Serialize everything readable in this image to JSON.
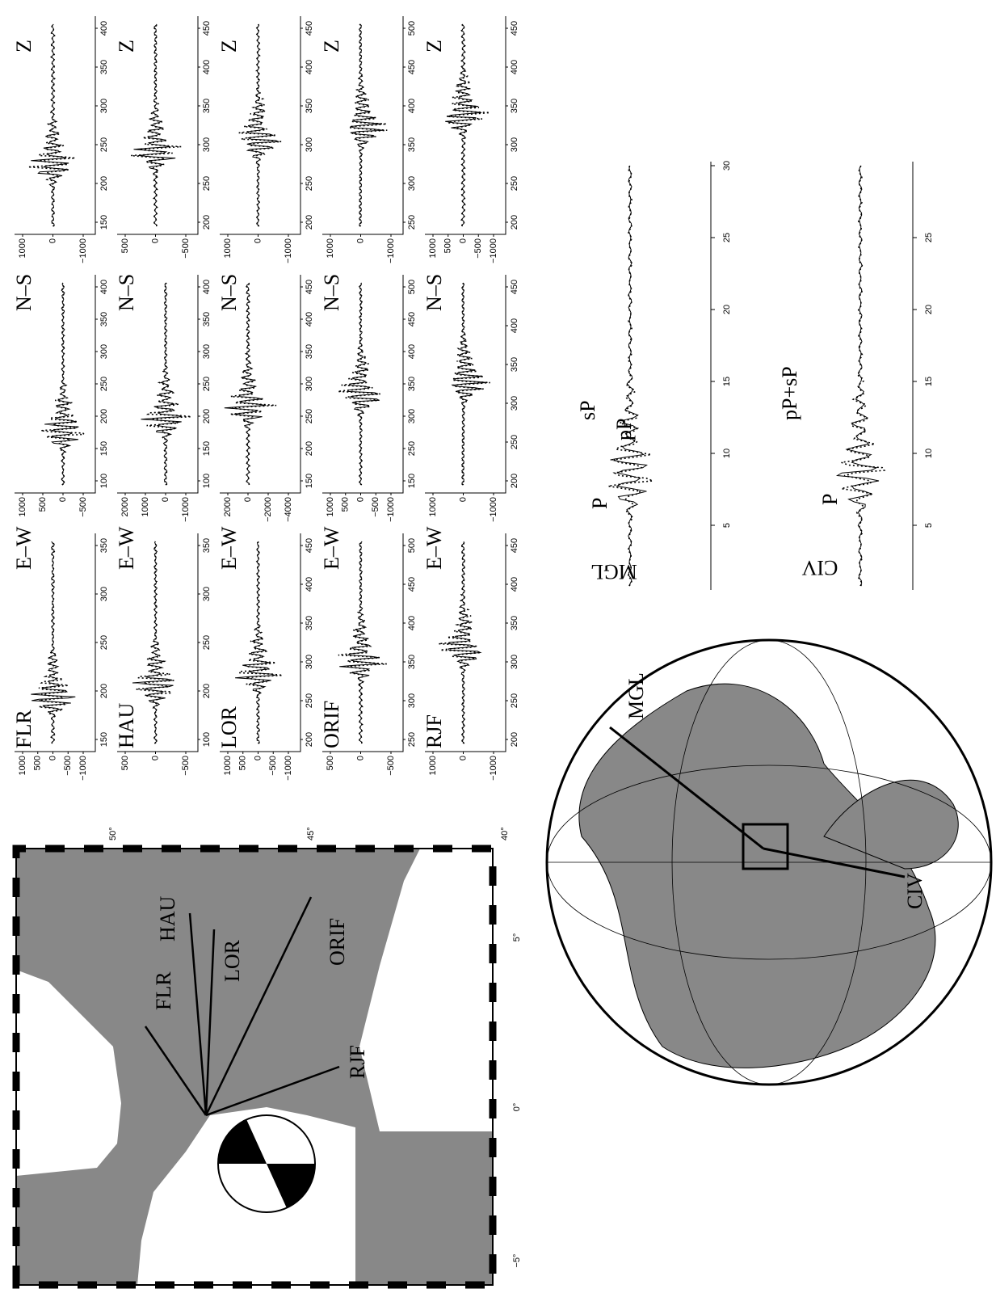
{
  "map": {
    "lat_labels": [
      "50°",
      "45°",
      "40°"
    ],
    "lon_labels": [
      "−5°",
      "0°",
      "5°"
    ]
  },
  "stations": [
    "FLR",
    "HAU",
    "LOR",
    "ORIF",
    "RJF"
  ],
  "waveforms": {
    "components": [
      "E–W",
      "N–S",
      "Z"
    ],
    "panels": [
      [
        {
          "xticks": [
            150,
            200,
            250,
            300,
            350
          ],
          "yticks": [
            "1000",
            "500",
            "0",
            "−500",
            "−1000"
          ]
        },
        {
          "xticks": [
            100,
            150,
            200,
            250,
            300,
            350,
            400
          ],
          "yticks": [
            "1000",
            "500",
            "0",
            "−500"
          ]
        },
        {
          "xticks": [
            150,
            200,
            250,
            300,
            350,
            400
          ],
          "yticks": [
            "1000",
            "0",
            "−1000"
          ]
        }
      ],
      [
        {
          "xticks": [
            100,
            200,
            250,
            300,
            350
          ],
          "yticks": [
            "500",
            "0",
            "−500"
          ]
        },
        {
          "xticks": [
            100,
            150,
            200,
            250,
            300,
            350,
            400
          ],
          "yticks": [
            "2000",
            "1000",
            "0",
            "−1000"
          ]
        },
        {
          "xticks": [
            200,
            250,
            300,
            350,
            400,
            450
          ],
          "yticks": [
            "500",
            "0",
            "−500"
          ]
        }
      ],
      [
        {
          "xticks": [
            200,
            250,
            300,
            350,
            400,
            450
          ],
          "yticks": [
            "1000",
            "500",
            "0",
            "−500",
            "−1000"
          ]
        },
        {
          "xticks": [
            150,
            200,
            250,
            300,
            350,
            400,
            450
          ],
          "yticks": [
            "2000",
            "0",
            "−2000",
            "−4000"
          ]
        },
        {
          "xticks": [
            200,
            250,
            300,
            350,
            400,
            450
          ],
          "yticks": [
            "1000",
            "0",
            "−1000"
          ]
        }
      ],
      [
        {
          "xticks": [
            250,
            300,
            350,
            400,
            450,
            500
          ],
          "yticks": [
            "500",
            "0",
            "−500"
          ]
        },
        {
          "xticks": [
            150,
            250,
            300,
            350,
            400,
            450,
            500
          ],
          "yticks": [
            "1000",
            "500",
            "0",
            "−500",
            "−1000"
          ]
        },
        {
          "xticks": [
            250,
            300,
            350,
            400,
            450,
            500
          ],
          "yticks": [
            "1000",
            "0",
            "−1000"
          ]
        }
      ],
      [
        {
          "xticks": [
            200,
            250,
            300,
            350,
            400,
            450
          ],
          "yticks": [
            "1000",
            "0",
            "−1000"
          ]
        },
        {
          "xticks": [
            200,
            250,
            300,
            350,
            400,
            450
          ],
          "yticks": [
            "1000",
            "0",
            "−1000"
          ]
        },
        {
          "xticks": [
            200,
            250,
            300,
            350,
            400,
            450
          ],
          "yticks": [
            "1000",
            "500",
            "0",
            "−500",
            "−1000"
          ]
        }
      ]
    ]
  },
  "teleseismic": [
    {
      "station": "MGL",
      "phases": [
        "P",
        "pP",
        "sP"
      ],
      "xticks": [
        5,
        10,
        15,
        20,
        25,
        30
      ]
    },
    {
      "station": "CIV",
      "phases": [
        "P",
        "pP+sP"
      ],
      "xticks": [
        5,
        10,
        15,
        20,
        25
      ]
    }
  ]
}
